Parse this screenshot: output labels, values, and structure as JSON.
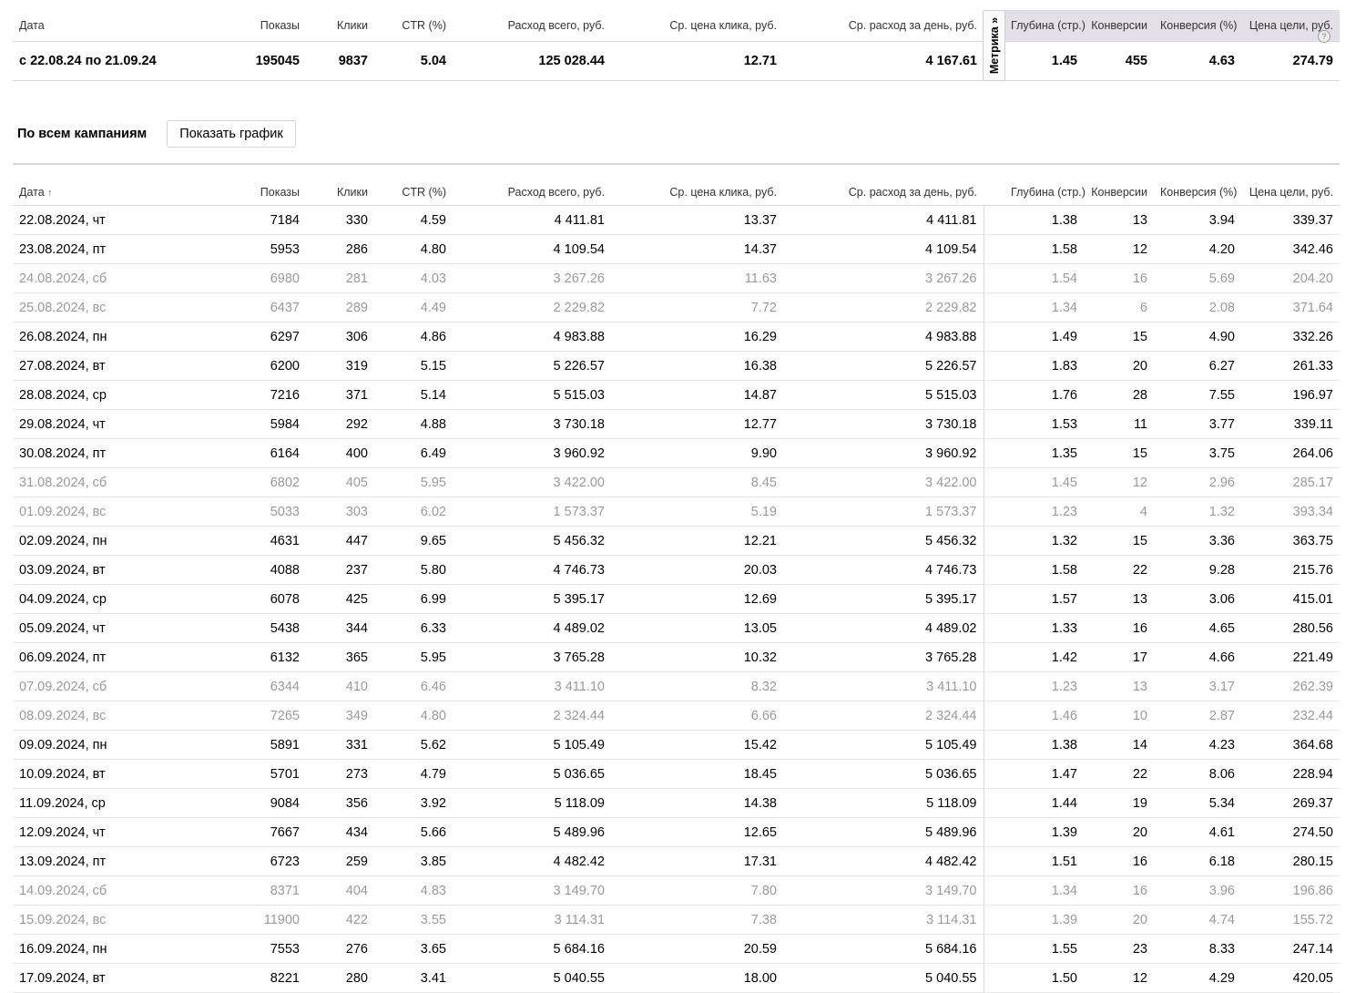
{
  "columns": [
    "Дата",
    "Показы",
    "Клики",
    "CTR (%)",
    "Расход всего, руб.",
    "Ср. цена клика, руб.",
    "Ср. расход за день, руб.",
    "Глубина (стр.)",
    "Конверсии",
    "Конверсия (%)",
    "Цена цели, руб."
  ],
  "metrika_tab": "Метрика »",
  "help_icon": "?",
  "summary": [
    "с 22.08.24 по 21.09.24",
    "195045",
    "9837",
    "5.04",
    "125 028.44",
    "12.71",
    "4 167.61",
    "1.45",
    "455",
    "4.63",
    "274.79"
  ],
  "toolbar": {
    "title": "По всем кампаниям",
    "show_chart": "Показать график"
  },
  "sort_arrow": "↑",
  "rows": [
    [
      "22.08.2024, чт",
      "7184",
      "330",
      "4.59",
      "4 411.81",
      "13.37",
      "4 411.81",
      "1.38",
      "13",
      "3.94",
      "339.37"
    ],
    [
      "23.08.2024, пт",
      "5953",
      "286",
      "4.80",
      "4 109.54",
      "14.37",
      "4 109.54",
      "1.58",
      "12",
      "4.20",
      "342.46"
    ],
    [
      "24.08.2024, сб",
      "6980",
      "281",
      "4.03",
      "3 267.26",
      "11.63",
      "3 267.26",
      "1.54",
      "16",
      "5.69",
      "204.20"
    ],
    [
      "25.08.2024, вс",
      "6437",
      "289",
      "4.49",
      "2 229.82",
      "7.72",
      "2 229.82",
      "1.34",
      "6",
      "2.08",
      "371.64"
    ],
    [
      "26.08.2024, пн",
      "6297",
      "306",
      "4.86",
      "4 983.88",
      "16.29",
      "4 983.88",
      "1.49",
      "15",
      "4.90",
      "332.26"
    ],
    [
      "27.08.2024, вт",
      "6200",
      "319",
      "5.15",
      "5 226.57",
      "16.38",
      "5 226.57",
      "1.83",
      "20",
      "6.27",
      "261.33"
    ],
    [
      "28.08.2024, ср",
      "7216",
      "371",
      "5.14",
      "5 515.03",
      "14.87",
      "5 515.03",
      "1.76",
      "28",
      "7.55",
      "196.97"
    ],
    [
      "29.08.2024, чт",
      "5984",
      "292",
      "4.88",
      "3 730.18",
      "12.77",
      "3 730.18",
      "1.53",
      "11",
      "3.77",
      "339.11"
    ],
    [
      "30.08.2024, пт",
      "6164",
      "400",
      "6.49",
      "3 960.92",
      "9.90",
      "3 960.92",
      "1.35",
      "15",
      "3.75",
      "264.06"
    ],
    [
      "31.08.2024, сб",
      "6802",
      "405",
      "5.95",
      "3 422.00",
      "8.45",
      "3 422.00",
      "1.45",
      "12",
      "2.96",
      "285.17"
    ],
    [
      "01.09.2024, вс",
      "5033",
      "303",
      "6.02",
      "1 573.37",
      "5.19",
      "1 573.37",
      "1.23",
      "4",
      "1.32",
      "393.34"
    ],
    [
      "02.09.2024, пн",
      "4631",
      "447",
      "9.65",
      "5 456.32",
      "12.21",
      "5 456.32",
      "1.32",
      "15",
      "3.36",
      "363.75"
    ],
    [
      "03.09.2024, вт",
      "4088",
      "237",
      "5.80",
      "4 746.73",
      "20.03",
      "4 746.73",
      "1.58",
      "22",
      "9.28",
      "215.76"
    ],
    [
      "04.09.2024, ср",
      "6078",
      "425",
      "6.99",
      "5 395.17",
      "12.69",
      "5 395.17",
      "1.57",
      "13",
      "3.06",
      "415.01"
    ],
    [
      "05.09.2024, чт",
      "5438",
      "344",
      "6.33",
      "4 489.02",
      "13.05",
      "4 489.02",
      "1.33",
      "16",
      "4.65",
      "280.56"
    ],
    [
      "06.09.2024, пт",
      "6132",
      "365",
      "5.95",
      "3 765.28",
      "10.32",
      "3 765.28",
      "1.42",
      "17",
      "4.66",
      "221.49"
    ],
    [
      "07.09.2024, сб",
      "6344",
      "410",
      "6.46",
      "3 411.10",
      "8.32",
      "3 411.10",
      "1.23",
      "13",
      "3.17",
      "262.39"
    ],
    [
      "08.09.2024, вс",
      "7265",
      "349",
      "4.80",
      "2 324.44",
      "6.66",
      "2 324.44",
      "1.46",
      "10",
      "2.87",
      "232.44"
    ],
    [
      "09.09.2024, пн",
      "5891",
      "331",
      "5.62",
      "5 105.49",
      "15.42",
      "5 105.49",
      "1.38",
      "14",
      "4.23",
      "364.68"
    ],
    [
      "10.09.2024, вт",
      "5701",
      "273",
      "4.79",
      "5 036.65",
      "18.45",
      "5 036.65",
      "1.47",
      "22",
      "8.06",
      "228.94"
    ],
    [
      "11.09.2024, ср",
      "9084",
      "356",
      "3.92",
      "5 118.09",
      "14.38",
      "5 118.09",
      "1.44",
      "19",
      "5.34",
      "269.37"
    ],
    [
      "12.09.2024, чт",
      "7667",
      "434",
      "5.66",
      "5 489.96",
      "12.65",
      "5 489.96",
      "1.39",
      "20",
      "4.61",
      "274.50"
    ],
    [
      "13.09.2024, пт",
      "6723",
      "259",
      "3.85",
      "4 482.42",
      "17.31",
      "4 482.42",
      "1.51",
      "16",
      "6.18",
      "280.15"
    ],
    [
      "14.09.2024, сб",
      "8371",
      "404",
      "4.83",
      "3 149.70",
      "7.80",
      "3 149.70",
      "1.34",
      "16",
      "3.96",
      "196.86"
    ],
    [
      "15.09.2024, вс",
      "11900",
      "422",
      "3.55",
      "3 114.31",
      "7.38",
      "3 114.31",
      "1.39",
      "20",
      "4.74",
      "155.72"
    ],
    [
      "16.09.2024, пн",
      "7553",
      "276",
      "3.65",
      "5 684.16",
      "20.59",
      "5 684.16",
      "1.55",
      "23",
      "8.33",
      "247.14"
    ],
    [
      "17.09.2024, вт",
      "8221",
      "280",
      "3.41",
      "5 040.55",
      "18.00",
      "5 040.55",
      "1.50",
      "12",
      "4.29",
      "420.05"
    ]
  ],
  "weekend_rows": [
    2,
    3,
    9,
    10,
    16,
    17,
    23,
    24
  ],
  "colors": {
    "metrika_header_bg": "#e3dfe9",
    "weekend_text": "#9a9a9a",
    "divider": "#d8d8d8"
  }
}
